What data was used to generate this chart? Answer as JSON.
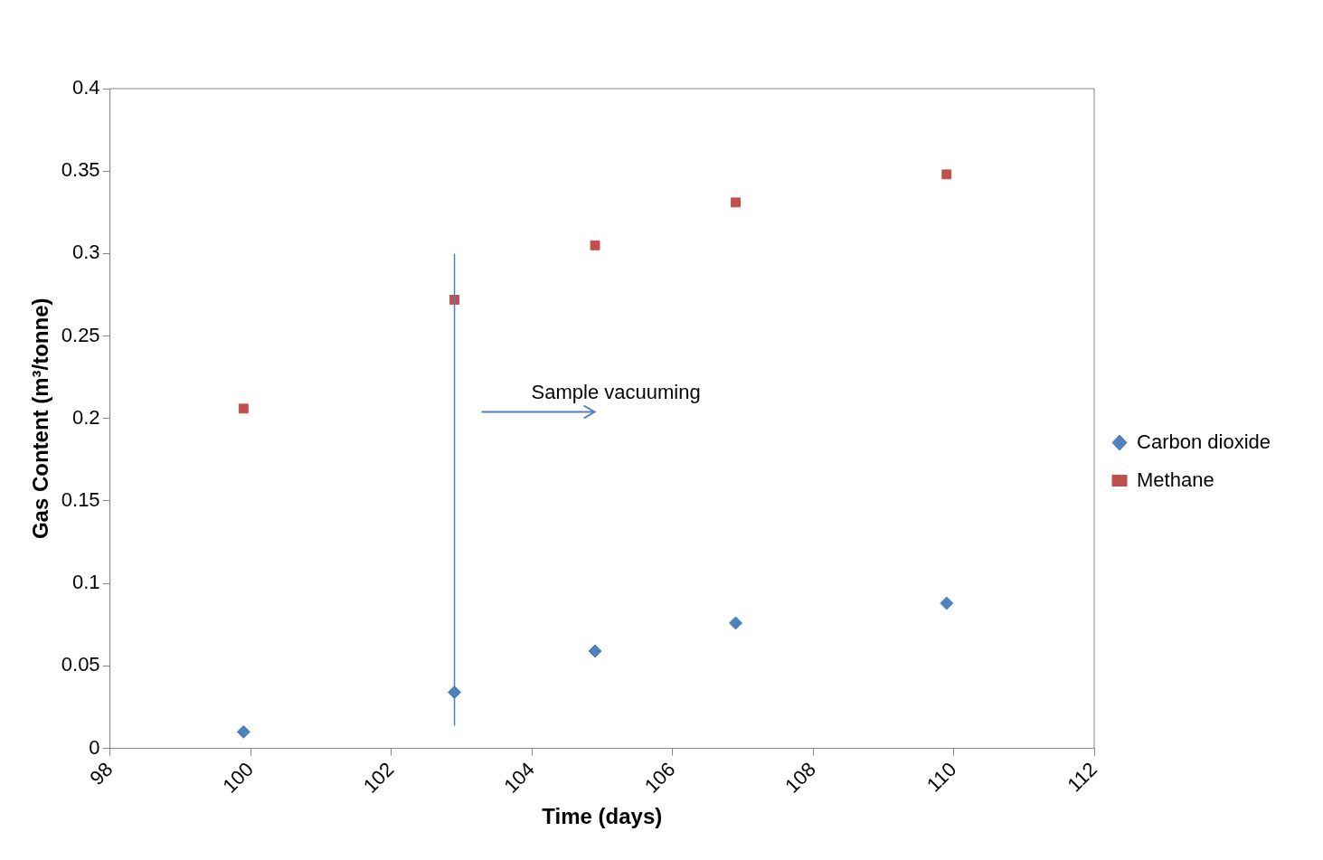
{
  "chart_data": {
    "type": "scatter",
    "xlabel": "Time (days)",
    "ylabel": "Gas Content (m³/tonne)",
    "series": [
      {
        "name": "Carbon dioxide",
        "color": "#4f81bd",
        "marker": "diamond",
        "x": [
          99.9,
          102.9,
          104.9,
          106.9,
          109.9
        ],
        "values": [
          0.01,
          0.034,
          0.059,
          0.076,
          0.088
        ]
      },
      {
        "name": "Methane",
        "color": "#c0504d",
        "marker": "square",
        "x": [
          99.9,
          102.9,
          104.9,
          106.9,
          109.9
        ],
        "values": [
          0.206,
          0.272,
          0.305,
          0.331,
          0.348
        ]
      }
    ],
    "xlim": [
      98,
      112
    ],
    "xticks": [
      98,
      100,
      102,
      104,
      106,
      108,
      110,
      112
    ],
    "ylim": [
      0,
      0.4
    ],
    "yticks": [
      0,
      0.05,
      0.1,
      0.15,
      0.2,
      0.25,
      0.3,
      0.35,
      0.4
    ],
    "grid": false,
    "legend": "right",
    "ref_lines": [
      {
        "axis": "x",
        "value": 102.9,
        "color": "#4f81bd"
      }
    ],
    "annotations": [
      "Sample vacuuming"
    ]
  }
}
